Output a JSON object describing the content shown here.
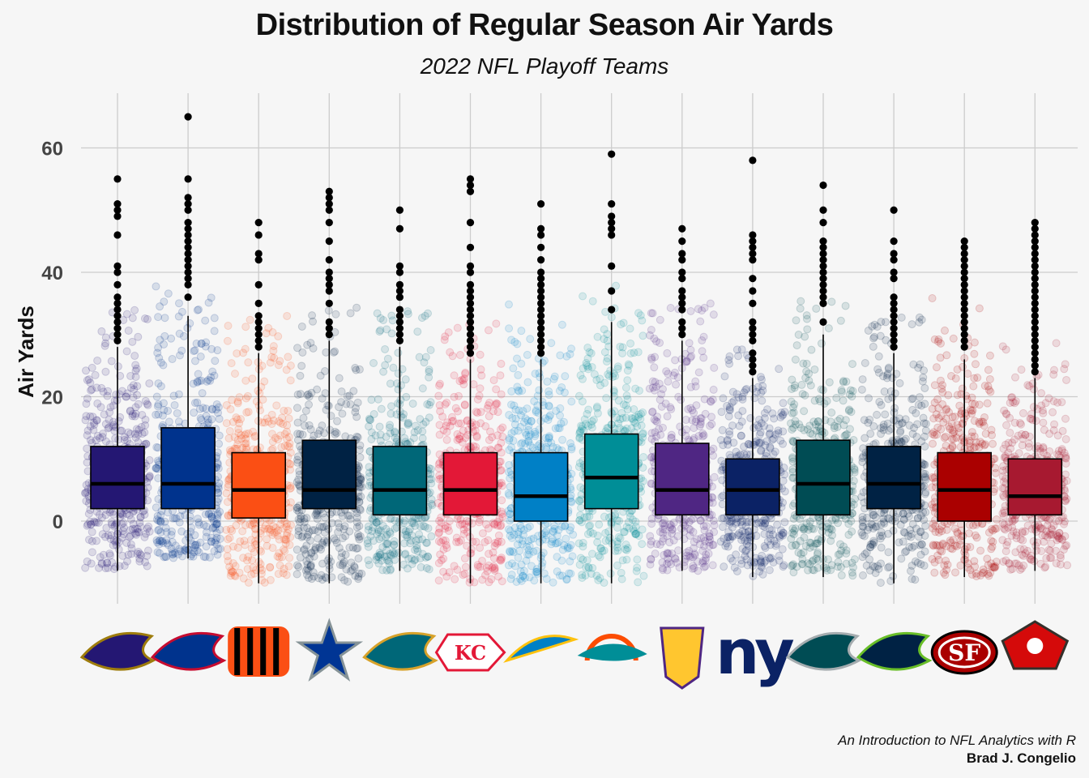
{
  "header": {
    "title": "Distribution of Regular Season Air Yards",
    "subtitle": "2022 NFL Playoff Teams"
  },
  "caption": {
    "line1": "An Introduction to NFL Analytics with R",
    "line2": "Brad J. Congelio"
  },
  "chart_data": {
    "type": "box",
    "title": "Distribution of Regular Season Air Yards",
    "subtitle": "2022 NFL Playoff Teams",
    "ylabel": "Air Yards",
    "xlabel": "",
    "ylim": [
      -13,
      69
    ],
    "y_ticks": [
      0,
      20,
      40,
      60
    ],
    "grid": true,
    "x_axis_labels": "team logos",
    "categories": [
      "BAL",
      "BUF",
      "CIN",
      "DAL",
      "JAX",
      "KC",
      "LAC",
      "MIA",
      "MIN",
      "NYG",
      "PHI",
      "SEA",
      "SF",
      "TB"
    ],
    "series": [
      {
        "team": "BAL",
        "logo": "bal-logo",
        "color": "#241773",
        "q1": 2,
        "median": 6,
        "q3": 12,
        "whisker_low": -8,
        "whisker_high": 28,
        "outliers": [
          29,
          30,
          31,
          32,
          33,
          34,
          35,
          36,
          38,
          40,
          41,
          46,
          49,
          50,
          51,
          55
        ]
      },
      {
        "team": "BUF",
        "logo": "buf-logo",
        "color": "#00338D",
        "q1": 2,
        "median": 6,
        "q3": 15,
        "whisker_low": -6,
        "whisker_high": 33,
        "outliers": [
          36,
          38,
          39,
          40,
          41,
          42,
          43,
          44,
          45,
          46,
          47,
          48,
          50,
          51,
          52,
          55,
          65
        ]
      },
      {
        "team": "CIN",
        "logo": "cin-logo",
        "color": "#FB4F14",
        "q1": 0.5,
        "median": 5,
        "q3": 11,
        "whisker_low": -10,
        "whisker_high": 27,
        "outliers": [
          28,
          29,
          30,
          31,
          32,
          33,
          35,
          38,
          42,
          43,
          46,
          48
        ]
      },
      {
        "team": "DAL",
        "logo": "dal-logo",
        "color": "#002244",
        "q1": 2,
        "median": 5,
        "q3": 13,
        "whisker_low": -10,
        "whisker_high": 29,
        "outliers": [
          30,
          31,
          32,
          35,
          37,
          38,
          39,
          40,
          42,
          45,
          48,
          50,
          51,
          52,
          53
        ]
      },
      {
        "team": "JAX",
        "logo": "jax-logo",
        "color": "#006778",
        "q1": 1,
        "median": 5,
        "q3": 12,
        "whisker_low": -8,
        "whisker_high": 28,
        "outliers": [
          29,
          30,
          31,
          32,
          33,
          34,
          36,
          37,
          38,
          40,
          41,
          47,
          50
        ]
      },
      {
        "team": "KC",
        "logo": "kc-logo",
        "color": "#E31837",
        "q1": 1,
        "median": 5,
        "q3": 11,
        "whisker_low": -10,
        "whisker_high": 26,
        "outliers": [
          27,
          28,
          29,
          30,
          31,
          32,
          33,
          34,
          35,
          36,
          37,
          38,
          40,
          41,
          44,
          48,
          53,
          54,
          55
        ]
      },
      {
        "team": "LAC",
        "logo": "lac-logo",
        "color": "#0080C6",
        "q1": 0,
        "median": 4,
        "q3": 11,
        "whisker_low": -10,
        "whisker_high": 26,
        "outliers": [
          27,
          28,
          29,
          30,
          31,
          32,
          33,
          34,
          35,
          36,
          37,
          38,
          39,
          40,
          42,
          44,
          46,
          47,
          51
        ]
      },
      {
        "team": "MIA",
        "logo": "mia-logo",
        "color": "#008E97",
        "q1": 2,
        "median": 7,
        "q3": 14,
        "whisker_low": -10,
        "whisker_high": 32,
        "outliers": [
          34,
          37,
          41,
          46,
          47,
          48,
          49,
          51,
          59
        ]
      },
      {
        "team": "MIN",
        "logo": "min-logo",
        "color": "#4F2683",
        "q1": 1,
        "median": 5,
        "q3": 12.5,
        "whisker_low": -8,
        "whisker_high": 29,
        "outliers": [
          30,
          31,
          32,
          34,
          35,
          36,
          37,
          39,
          40,
          42,
          43,
          45,
          47
        ]
      },
      {
        "team": "NYG",
        "logo": "nyg-logo",
        "color": "#0B2265",
        "q1": 1,
        "median": 5,
        "q3": 10,
        "whisker_low": -9,
        "whisker_high": 23,
        "outliers": [
          24,
          25,
          26,
          27,
          29,
          30,
          31,
          32,
          35,
          37,
          39,
          42,
          43,
          44,
          45,
          46,
          58
        ]
      },
      {
        "team": "PHI",
        "logo": "phi-logo",
        "color": "#004C54",
        "q1": 1,
        "median": 6,
        "q3": 13,
        "whisker_low": -9,
        "whisker_high": 30,
        "outliers": [
          32,
          35,
          36,
          37,
          38,
          39,
          40,
          41,
          42,
          43,
          44,
          45,
          48,
          50,
          54
        ]
      },
      {
        "team": "SEA",
        "logo": "sea-logo",
        "color": "#002244",
        "q1": 2,
        "median": 6,
        "q3": 12,
        "whisker_low": -10,
        "whisker_high": 27,
        "outliers": [
          28,
          29,
          30,
          31,
          32,
          33,
          34,
          35,
          36,
          39,
          40,
          42,
          43,
          45,
          50
        ]
      },
      {
        "team": "SF",
        "logo": "sf-logo",
        "color": "#AA0000",
        "q1": 0,
        "median": 5,
        "q3": 11,
        "whisker_low": -9,
        "whisker_high": 26,
        "outliers": [
          28,
          29,
          30,
          31,
          32,
          33,
          34,
          35,
          36,
          37,
          38,
          39,
          40,
          41,
          42,
          43,
          44,
          45
        ]
      },
      {
        "team": "TB",
        "logo": "tb-logo",
        "color": "#A71930",
        "q1": 1,
        "median": 4,
        "q3": 10,
        "whisker_low": -8,
        "whisker_high": 23,
        "outliers": [
          24,
          25,
          26,
          27,
          28,
          29,
          30,
          31,
          32,
          33,
          34,
          35,
          36,
          37,
          38,
          39,
          40,
          41,
          42,
          43,
          44,
          45,
          46,
          47,
          48
        ]
      }
    ]
  }
}
